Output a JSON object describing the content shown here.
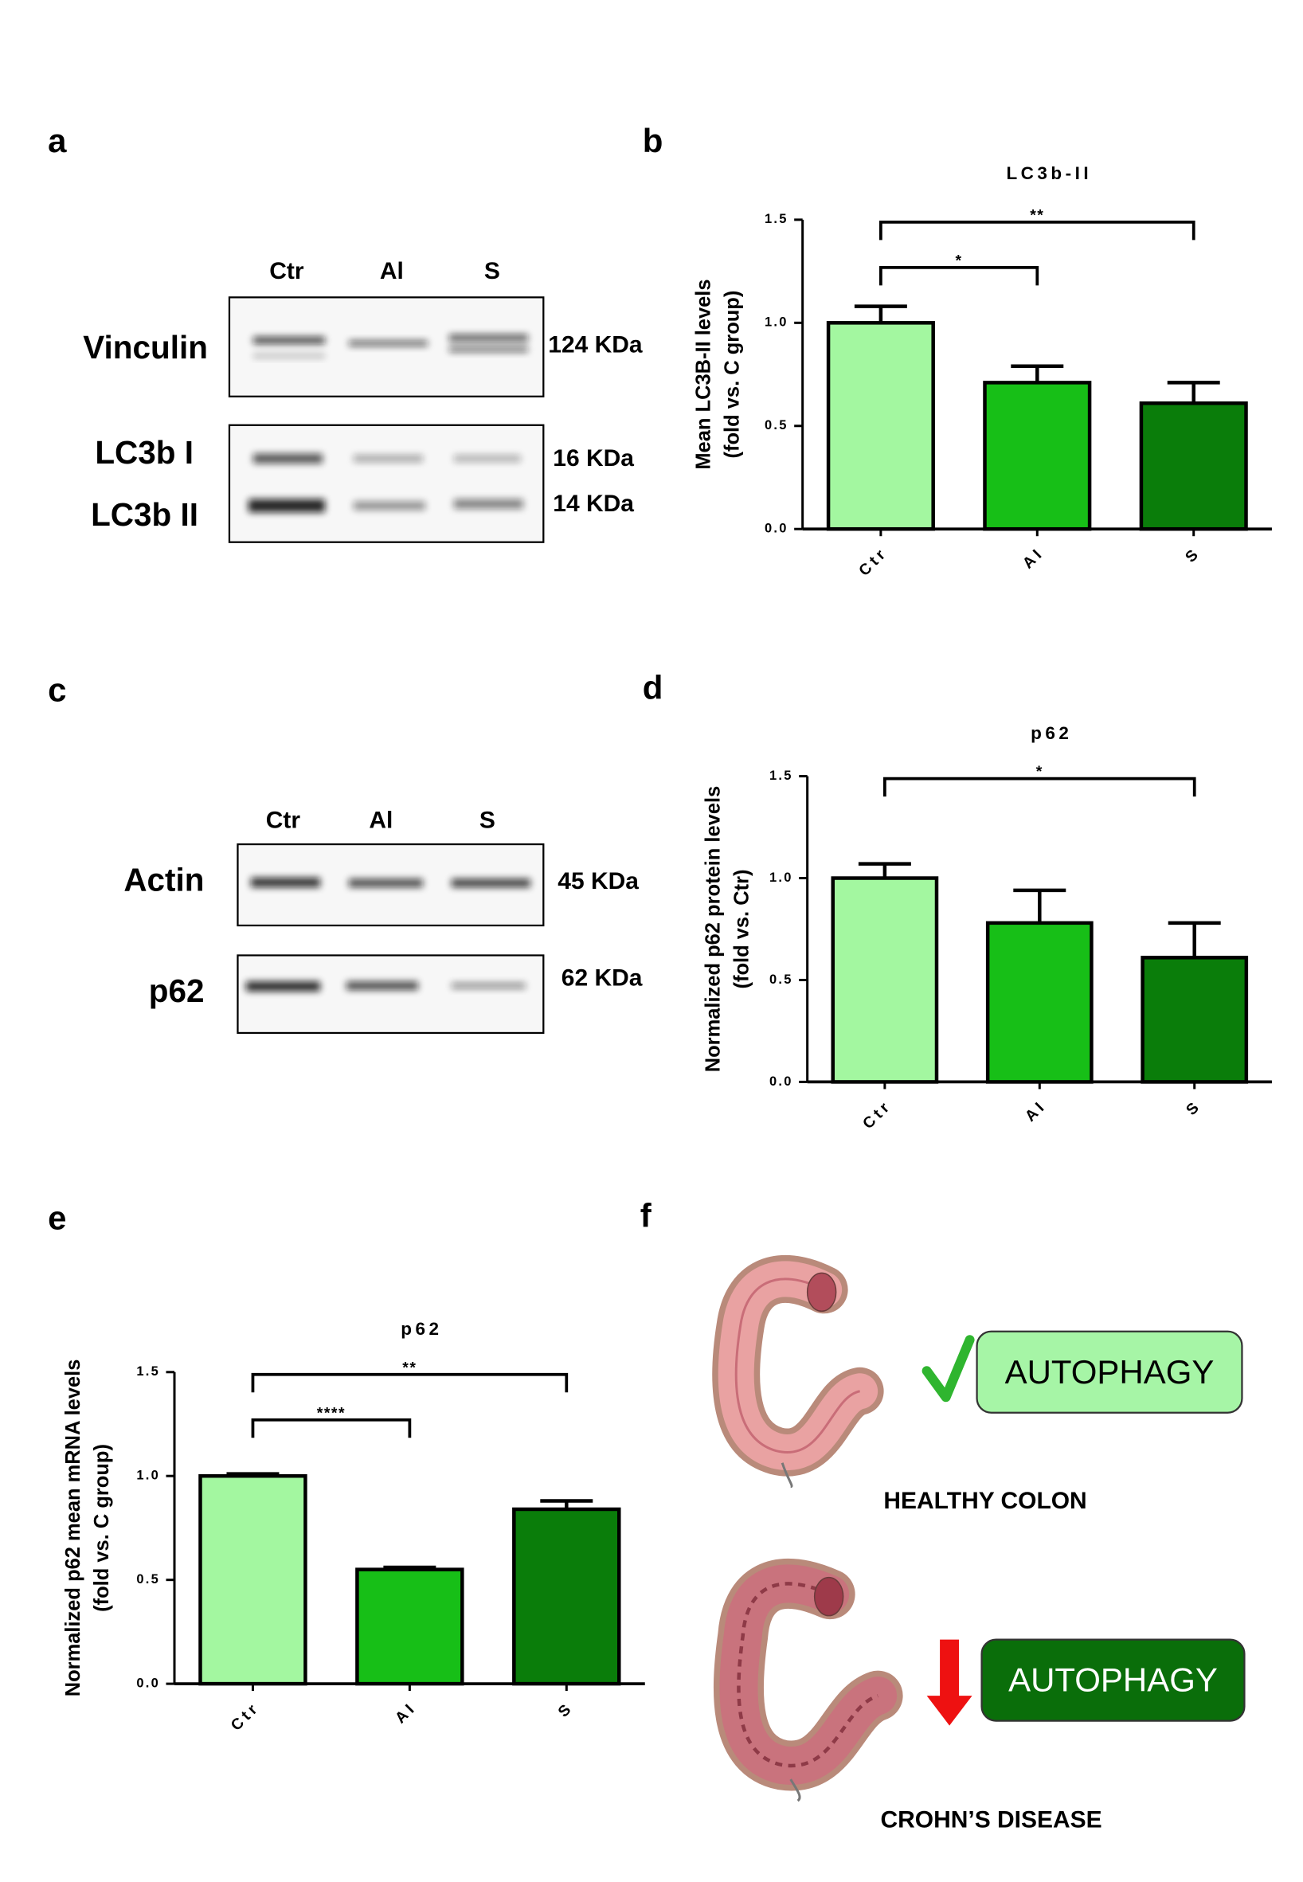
{
  "panel_labels": [
    "a",
    "b",
    "c",
    "d",
    "e",
    "f"
  ],
  "blot_a": {
    "lanes": [
      "Ctr",
      "Al",
      "S"
    ],
    "rows": [
      "Vinculin",
      "LC3b I",
      "LC3b II"
    ],
    "sizes": [
      "124 KDa",
      "16 KDa",
      "14 KDa"
    ]
  },
  "blot_c": {
    "lanes": [
      "Ctr",
      "Al",
      "S"
    ],
    "rows": [
      "Actin",
      "p62"
    ],
    "sizes": [
      "45 KDa",
      "62 KDa"
    ]
  },
  "illustration": {
    "healthy": {
      "box": "AUTOPHAGY",
      "caption": "HEALTHY COLON"
    },
    "crohns": {
      "box": "AUTOPHAGY",
      "caption": "CROHN’S DISEASE"
    }
  },
  "chart_data": [
    {
      "type": "bar",
      "title": "LC3b-II",
      "y_label": [
        "Mean LC3B-II levels",
        "(fold vs. C group)"
      ],
      "categories": [
        "Ctr",
        "AI",
        "S"
      ],
      "values": [
        1.0,
        0.71,
        0.61
      ],
      "errors": [
        0.08,
        0.08,
        0.1
      ],
      "colors": [
        "#a3f7a0",
        "#17bf17",
        "#0a7d0a"
      ],
      "ylim": [
        0,
        1.5
      ],
      "yticks": [
        {
          "value": 0,
          "label": "0.0"
        },
        {
          "value": 0.5,
          "label": "0.5"
        },
        {
          "value": 1,
          "label": "1.0"
        },
        {
          "value": 1.5,
          "label": "1.5"
        }
      ],
      "significance": [
        {
          "groups": [
            "Ctr",
            "S"
          ],
          "label": "**"
        },
        {
          "groups": [
            "Ctr",
            "AI"
          ],
          "label": "*"
        }
      ]
    },
    {
      "type": "bar",
      "title": "p62",
      "y_label": [
        "Normalized p62 protein levels",
        "(fold vs. Ctr)"
      ],
      "categories": [
        "Ctr",
        "AI",
        "S"
      ],
      "values": [
        1.0,
        0.78,
        0.61
      ],
      "errors": [
        0.07,
        0.16,
        0.17
      ],
      "colors": [
        "#a3f7a0",
        "#17bf17",
        "#0a7d0a"
      ],
      "ylim": [
        0,
        1.5
      ],
      "yticks": [
        {
          "value": 0,
          "label": "0.0"
        },
        {
          "value": 0.5,
          "label": "0.5"
        },
        {
          "value": 1,
          "label": "1.0"
        },
        {
          "value": 1.5,
          "label": "1.5"
        }
      ],
      "significance": [
        {
          "groups": [
            "Ctr",
            "S"
          ],
          "label": "*"
        }
      ]
    },
    {
      "type": "bar",
      "title": "p62",
      "y_label": [
        "Normalized p62 mean mRNA levels",
        "(fold vs. C group)"
      ],
      "categories": [
        "Ctr",
        "AI",
        "S"
      ],
      "values": [
        1.0,
        0.55,
        0.84
      ],
      "errors": [
        0.01,
        0.01,
        0.04
      ],
      "colors": [
        "#a3f7a0",
        "#17bf17",
        "#0a7d0a"
      ],
      "ylim": [
        0,
        1.5
      ],
      "yticks": [
        {
          "value": 0,
          "label": "0.0"
        },
        {
          "value": 0.5,
          "label": "0.5"
        },
        {
          "value": 1,
          "label": "1.0"
        },
        {
          "value": 1.5,
          "label": "1.5"
        }
      ],
      "significance": [
        {
          "groups": [
            "Ctr",
            "S"
          ],
          "label": "**"
        },
        {
          "groups": [
            "Ctr",
            "AI"
          ],
          "label": "****"
        }
      ]
    }
  ]
}
